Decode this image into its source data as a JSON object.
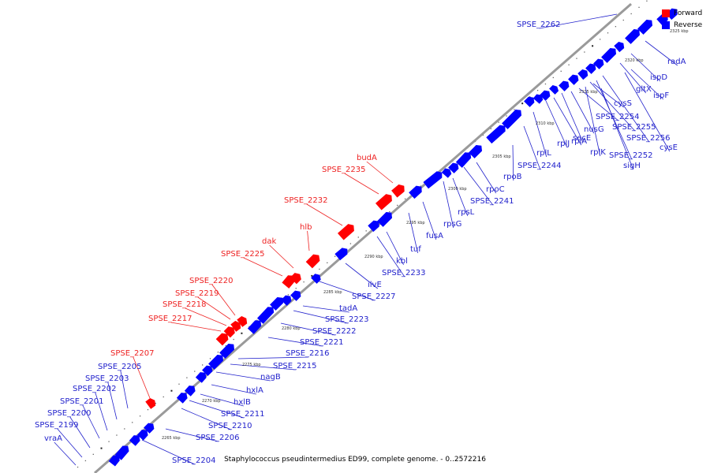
{
  "colors": {
    "forward": "#ff0000",
    "reverse": "#0000ff",
    "forward_label": "#ee2222",
    "reverse_label": "#2222cc",
    "backbone": "#9a9a9a"
  },
  "legend": {
    "forward_label": "Forward",
    "reverse_label": "Reverse"
  },
  "caption": "Staphylococcus pseudintermedius ED99, complete genome. - 0..2572216",
  "genome": {
    "scale_ticks": [
      "2265 kbp",
      "2270 kbp",
      "2275 kbp",
      "2280 kbp",
      "2285 kbp",
      "2290 kbp",
      "2295 kbp",
      "2300 kbp",
      "2305 kbp",
      "2310 kbp",
      "2315 kbp",
      "2320 kbp",
      "2325 kbp"
    ],
    "forward_genes": [
      "budA",
      "SPSE_2235",
      "SPSE_2232",
      "hlb",
      "dak",
      "SPSE_2225",
      "SPSE_2220",
      "SPSE_2219",
      "SPSE_2218",
      "SPSE_2217",
      "SPSE_2207"
    ],
    "reverse_genes": [
      "SPSE_2262",
      "radA",
      "ispD",
      "gltX",
      "ispF",
      "cysS",
      "SPSE_2254",
      "nusG",
      "SPSE_2255",
      "secE",
      "SPSE_2256",
      "rplA",
      "cysE",
      "rplK",
      "rplL",
      "rplJ",
      "SPSE_2252",
      "sigH",
      "SPSE_2244",
      "rpoB",
      "rpoC",
      "SPSE_2241",
      "rpsL",
      "rpsG",
      "fusA",
      "tuf",
      "kbl",
      "SPSE_2233",
      "ilvE",
      "SPSE_2227",
      "tadA",
      "SPSE_2223",
      "SPSE_2222",
      "SPSE_2221",
      "SPSE_2216",
      "SPSE_2215",
      "nagB",
      "hxlA",
      "hxlB",
      "SPSE_2211",
      "SPSE_2210",
      "SPSE_2206",
      "SPSE_2205",
      "SPSE_2203",
      "SPSE_2202",
      "SPSE_2201",
      "SPSE_2200",
      "SPSE_2199",
      "vraA",
      "SPSE_2204"
    ]
  }
}
